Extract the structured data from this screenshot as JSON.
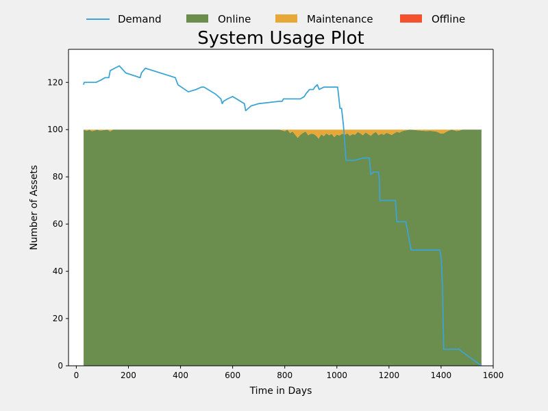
{
  "chart_data": {
    "type": "area",
    "title": "System Usage Plot",
    "xlabel": "Time in Days",
    "ylabel": "Number of Assets",
    "xlim": [
      -30,
      1600
    ],
    "ylim": [
      0,
      134
    ],
    "xticks": [
      0,
      200,
      400,
      600,
      800,
      1000,
      1200,
      1400,
      1600
    ],
    "yticks": [
      0,
      20,
      40,
      60,
      80,
      100,
      120
    ],
    "legend_position": "top-center",
    "grid": false,
    "colors": {
      "Demand": "#3ca4d4",
      "Online": "#6b8e4e",
      "Maintenance": "#e8a838",
      "Offline": "#f4522f"
    },
    "series": [
      {
        "name": "Demand",
        "kind": "line",
        "x": [
          28,
          30,
          35,
          75,
          95,
          110,
          125,
          130,
          165,
          190,
          245,
          250,
          265,
          380,
          390,
          430,
          460,
          480,
          490,
          535,
          555,
          560,
          565,
          580,
          600,
          645,
          650,
          670,
          700,
          780,
          790,
          795,
          805,
          860,
          875,
          880,
          895,
          910,
          915,
          925,
          932,
          950,
          1000,
          1003,
          1012,
          1018,
          1025,
          1030,
          1035,
          1070,
          1100,
          1110,
          1125,
          1130,
          1140,
          1160,
          1163,
          1165,
          1225,
          1230,
          1265,
          1270,
          1285,
          1290,
          1395,
          1400,
          1405,
          1410,
          1415,
          1420,
          1470,
          1480,
          1555
        ],
        "values": [
          119,
          120,
          120,
          120,
          121,
          122,
          122,
          125,
          127,
          124,
          122,
          124,
          126,
          122,
          119,
          116,
          117,
          118,
          118,
          115,
          113,
          111,
          112,
          113,
          114,
          111,
          108,
          110,
          111,
          112,
          112,
          113,
          113,
          113,
          114,
          115,
          117,
          117,
          118,
          119,
          117,
          118,
          118,
          118,
          109,
          109,
          102,
          95,
          87,
          87,
          88,
          88,
          88,
          81,
          82,
          82,
          79,
          70,
          70,
          61,
          61,
          58,
          49,
          49,
          49,
          46,
          35,
          7,
          7,
          7,
          7,
          6,
          0
        ]
      },
      {
        "name": "Online",
        "kind": "stacked-area",
        "x": [
          28,
          40,
          50,
          60,
          80,
          90,
          120,
          130,
          140,
          200,
          300,
          400,
          500,
          600,
          700,
          780,
          790,
          800,
          810,
          820,
          830,
          840,
          850,
          860,
          870,
          880,
          890,
          900,
          910,
          920,
          930,
          940,
          950,
          960,
          970,
          980,
          990,
          1000,
          1010,
          1020,
          1030,
          1040,
          1050,
          1060,
          1070,
          1080,
          1090,
          1100,
          1110,
          1120,
          1130,
          1140,
          1150,
          1160,
          1170,
          1180,
          1190,
          1200,
          1210,
          1220,
          1230,
          1240,
          1250,
          1260,
          1270,
          1280,
          1300,
          1320,
          1340,
          1360,
          1380,
          1390,
          1400,
          1410,
          1420,
          1430,
          1440,
          1450,
          1460,
          1470,
          1480,
          1500,
          1555
        ],
        "values": [
          100,
          99.5,
          100,
          99.3,
          100,
          99.6,
          100,
          99.2,
          100,
          100,
          100,
          100,
          100,
          100,
          100,
          100,
          99.7,
          99.3,
          100,
          98.5,
          99.2,
          97.8,
          96.5,
          97.8,
          98.6,
          99.2,
          97.6,
          98.3,
          98.2,
          97.5,
          96.2,
          98,
          97.2,
          98.4,
          97.6,
          98.2,
          96.8,
          97.9,
          97.5,
          98.3,
          97.8,
          98.4,
          97.4,
          98.1,
          97.8,
          99,
          98.4,
          97.6,
          98.8,
          98.1,
          97.4,
          98.4,
          99,
          97.6,
          98.3,
          97.8,
          98.6,
          98.3,
          97.7,
          98.4,
          99.1,
          98.7,
          99.3,
          99.6,
          99.8,
          100,
          99.8,
          99.6,
          99.4,
          99.5,
          99.2,
          98.8,
          98.3,
          98.4,
          99.1,
          99.6,
          100,
          99.7,
          99.4,
          99.6,
          100,
          100,
          100
        ]
      },
      {
        "name": "Maintenance",
        "kind": "stacked-area",
        "x": [
          28,
          40,
          50,
          60,
          80,
          90,
          120,
          130,
          140,
          200,
          300,
          400,
          500,
          600,
          700,
          780,
          790,
          800,
          810,
          820,
          830,
          840,
          850,
          860,
          870,
          880,
          890,
          900,
          910,
          920,
          930,
          940,
          950,
          960,
          970,
          980,
          990,
          1000,
          1010,
          1020,
          1030,
          1040,
          1050,
          1060,
          1070,
          1080,
          1090,
          1100,
          1110,
          1120,
          1130,
          1140,
          1150,
          1160,
          1170,
          1180,
          1190,
          1200,
          1210,
          1220,
          1230,
          1240,
          1250,
          1260,
          1270,
          1280,
          1300,
          1320,
          1340,
          1360,
          1380,
          1390,
          1400,
          1410,
          1420,
          1430,
          1440,
          1450,
          1460,
          1470,
          1480,
          1500,
          1555
        ],
        "values": [
          0,
          0.5,
          0,
          0.7,
          0,
          0.4,
          0,
          0.8,
          0,
          0,
          0,
          0,
          0,
          0,
          0,
          0,
          0.3,
          0.7,
          0,
          1.5,
          0.8,
          2.2,
          3.5,
          2.2,
          1.4,
          0.8,
          2.4,
          1.7,
          1.8,
          2.5,
          3.8,
          2,
          2.8,
          1.6,
          2.4,
          1.8,
          3.2,
          2.1,
          2.5,
          1.7,
          2.2,
          1.6,
          2.6,
          1.9,
          2.2,
          1,
          1.6,
          2.4,
          1.2,
          1.9,
          2.6,
          1.6,
          1,
          2.4,
          1.7,
          2.2,
          1.4,
          1.7,
          2.3,
          1.6,
          0.9,
          1.3,
          0.7,
          0.4,
          0.2,
          0,
          0.2,
          0.4,
          0.6,
          0.5,
          0.8,
          1.2,
          1.7,
          1.6,
          0.9,
          0.4,
          0,
          0.3,
          0.6,
          0.4,
          0,
          0,
          0
        ]
      },
      {
        "name": "Offline",
        "kind": "stacked-area",
        "x": [
          28,
          1555
        ],
        "values": [
          0,
          0
        ]
      }
    ]
  }
}
